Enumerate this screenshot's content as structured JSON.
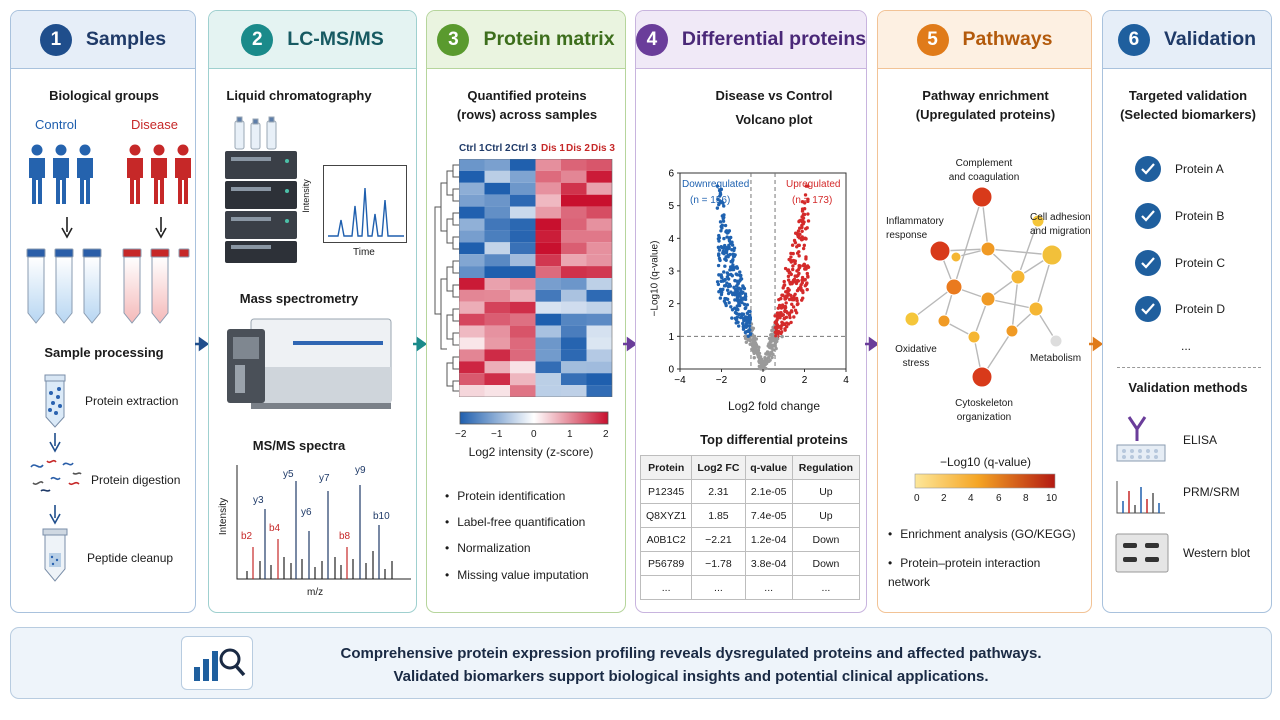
{
  "panels": [
    {
      "num": "1",
      "title": "Samples"
    },
    {
      "num": "2",
      "title": "LC-MS/MS"
    },
    {
      "num": "3",
      "title": "Protein matrix"
    },
    {
      "num": "4",
      "title": "Differential proteins"
    },
    {
      "num": "5",
      "title": "Pathways"
    },
    {
      "num": "6",
      "title": "Validation"
    }
  ],
  "samples": {
    "groups_heading": "Biological groups",
    "control_label": "Control",
    "disease_label": "Disease",
    "processing_heading": "Sample processing",
    "steps": [
      "Protein extraction",
      "Protein digestion",
      "Peptide cleanup"
    ]
  },
  "lcms": {
    "lc_heading": "Liquid chromatography",
    "lc_ylabel": "Intensity",
    "lc_xlabel": "Time",
    "ms_heading": "Mass spectrometry",
    "msms_heading": "MS/MS spectra",
    "msms_ylabel": "Intensity",
    "msms_xlabel": "m/z",
    "ions": {
      "b2": "b2",
      "y3": "y3",
      "b4": "b4",
      "y5": "y5",
      "y6": "y6",
      "y7": "y7",
      "b8": "b8",
      "y9": "y9",
      "b10": "b10"
    }
  },
  "matrix": {
    "heading_line1": "Quantified proteins",
    "heading_line2": "(rows) across samples",
    "columns": [
      "Ctrl 1",
      "Ctrl 2",
      "Ctrl 3",
      "Dis 1",
      "Dis 2",
      "Dis 3"
    ],
    "colorbar_ticks": [
      "−2",
      "−1",
      "0",
      "1",
      "2"
    ],
    "colorbar_label": "Log2 intensity (z-score)",
    "bullets": [
      "Protein identification",
      "Label-free quantification",
      "Normalization",
      "Missing value imputation"
    ]
  },
  "differential": {
    "heading_line1": "Disease vs Control",
    "heading_line2": "Volcano plot",
    "down_label": "Downregulated",
    "down_count": "(n = 156)",
    "up_label": "Upregulated",
    "up_count": "(n = 173)",
    "ylabel": "−Log10 (q-value)",
    "xlabel": "Log2 fold change",
    "x_ticks": [
      "−4",
      "−2",
      "0",
      "2",
      "4"
    ],
    "y_ticks": [
      "0",
      "1",
      "2",
      "3",
      "4",
      "5",
      "6"
    ],
    "table_heading": "Top differential proteins",
    "table_headers": [
      "Protein",
      "Log2 FC",
      "q-value",
      "Regulation"
    ],
    "table_rows": [
      [
        "P12345",
        "2.31",
        "2.1e-05",
        "Up"
      ],
      [
        "Q8XYZ1",
        "1.85",
        "7.4e-05",
        "Up"
      ],
      [
        "A0B1C2",
        "−2.21",
        "1.2e-04",
        "Down"
      ],
      [
        "P56789",
        "−1.78",
        "3.8e-04",
        "Down"
      ],
      [
        "...",
        "...",
        "...",
        "..."
      ]
    ]
  },
  "pathways": {
    "heading_line1": "Pathway enrichment",
    "heading_line2": "(Upregulated proteins)",
    "labels": {
      "complement": "Complement\nand coagulation",
      "inflammatory": "Inflammatory\nresponse",
      "adhesion": "Cell adhesion\nand migration",
      "oxidative": "Oxidative\nstress",
      "metabolism": "Metabolism",
      "cytoskeleton": "Cytoskeleton\norganization"
    },
    "colorbar_label": "−Log10 (q-value)",
    "colorbar_ticks": [
      "0",
      "2",
      "4",
      "6",
      "8",
      "10"
    ],
    "bullets": [
      "Enrichment analysis (GO/KEGG)",
      "Protein–protein interaction network"
    ]
  },
  "validation": {
    "heading_line1": "Targeted validation",
    "heading_line2": "(Selected biomarkers)",
    "proteins": [
      "Protein A",
      "Protein B",
      "Protein C",
      "Protein D",
      "..."
    ],
    "methods_heading": "Validation methods",
    "methods": [
      "ELISA",
      "PRM/SRM",
      "Western blot"
    ]
  },
  "footer": {
    "line1": "Comprehensive protein expression profiling reveals dysregulated proteins and affected pathways.",
    "line2": "Validated biomarkers support biological insights and potential clinical applications."
  },
  "colors": {
    "samples": "#1f4e8c",
    "lcms": "#1a8a8a",
    "matrix": "#5a9a2e",
    "differential": "#6a3d9a",
    "pathways": "#e07b1a",
    "validation": "#1f5f9e",
    "up": "#d42a2a",
    "down": "#1f62b0",
    "ns": "#9a9a9a"
  }
}
